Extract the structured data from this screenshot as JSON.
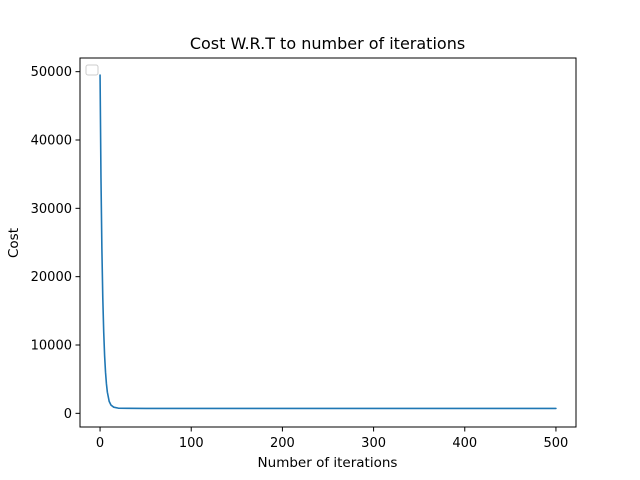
{
  "chart_data": {
    "type": "line",
    "title": "Cost W.R.T to number of iterations",
    "xlabel": "Number of iterations",
    "ylabel": "Cost",
    "xlim": [
      -22,
      522
    ],
    "ylim": [
      -2000,
      52000
    ],
    "xticks": [
      0,
      100,
      200,
      300,
      400,
      500
    ],
    "xtick_labels": [
      "0",
      "100",
      "200",
      "300",
      "400",
      "500"
    ],
    "yticks": [
      0,
      10000,
      20000,
      30000,
      40000,
      50000
    ],
    "ytick_labels": [
      "0",
      "10000",
      "20000",
      "30000",
      "40000",
      "50000"
    ],
    "grid": false,
    "legend": {
      "placement": "top-left",
      "entries": []
    },
    "series": [
      {
        "color": "#1f77b4",
        "x": [
          0,
          1,
          2,
          3,
          4,
          5,
          6,
          7,
          8,
          10,
          12,
          15,
          20,
          30,
          50,
          100,
          200,
          300,
          400,
          500
        ],
        "y": [
          49500,
          34500,
          24100,
          16900,
          11900,
          8400,
          6000,
          4300,
          3100,
          1750,
          1200,
          900,
          760,
          730,
          720,
          720,
          720,
          720,
          720,
          720
        ]
      }
    ]
  }
}
